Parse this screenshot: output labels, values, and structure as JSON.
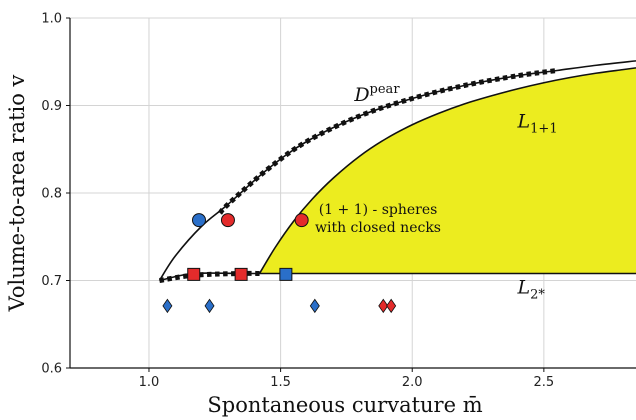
{
  "chart_data": {
    "type": "line",
    "xlabel": "Spontaneous curvature m̄",
    "ylabel": "Volume-to-area ratio v",
    "xlim": [
      0.7,
      2.85
    ],
    "ylim": [
      0.6,
      1.0
    ],
    "x_ticks": [
      "1.0",
      "1.5",
      "2.0",
      "2.5"
    ],
    "x_tick_values": [
      1.0,
      1.5,
      2.0,
      2.5
    ],
    "y_ticks": [
      "0.6",
      "0.7",
      "0.8",
      "0.9",
      "1.0"
    ],
    "y_tick_values": [
      0.6,
      0.7,
      0.8,
      0.9,
      1.0
    ],
    "grid": true,
    "fill_color": "#ecec1f",
    "region": {
      "label_line1": "(1 + 1) - spheres",
      "label_line2": "with closed necks",
      "label_pos": [
        1.87,
        0.776
      ],
      "bottom_v": 0.708,
      "boundary_x": [
        1.42,
        1.48,
        1.55,
        1.62,
        1.7,
        1.8,
        1.9,
        2.0,
        2.1,
        2.2,
        2.3,
        2.4,
        2.5,
        2.6,
        2.7,
        2.8,
        2.85
      ],
      "boundary_y": [
        0.708,
        0.738,
        0.768,
        0.793,
        0.817,
        0.842,
        0.862,
        0.878,
        0.891,
        0.902,
        0.911,
        0.919,
        0.926,
        0.932,
        0.937,
        0.941,
        0.943
      ]
    },
    "series": [
      {
        "name": "L_{1+1}",
        "style": "solid",
        "x": [
          1.42,
          1.48,
          1.55,
          1.62,
          1.7,
          1.8,
          1.9,
          2.0,
          2.1,
          2.2,
          2.3,
          2.4,
          2.5,
          2.6,
          2.7,
          2.8,
          2.85
        ],
        "y": [
          0.708,
          0.738,
          0.768,
          0.793,
          0.817,
          0.842,
          0.862,
          0.878,
          0.891,
          0.902,
          0.911,
          0.919,
          0.926,
          0.932,
          0.937,
          0.941,
          0.943
        ]
      },
      {
        "name": "L_{2*}",
        "style": "solid",
        "x": [
          1.04,
          1.17,
          1.35,
          1.4,
          1.6,
          2.0,
          2.5,
          2.85
        ],
        "y": [
          0.7,
          0.708,
          0.708,
          0.708,
          0.708,
          0.708,
          0.708,
          0.708
        ]
      },
      {
        "name": "L_{2*} (dotted)",
        "style": "dotted",
        "x": [
          1.04,
          1.17,
          1.35,
          1.42
        ],
        "y": [
          0.7,
          0.706,
          0.708,
          0.708
        ]
      },
      {
        "name": "D^pear",
        "style": "solid",
        "x": [
          1.04,
          1.1,
          1.2,
          1.3,
          1.45,
          1.6,
          1.8,
          2.0,
          2.2,
          2.4,
          2.55,
          2.7,
          2.85
        ],
        "y": [
          0.7,
          0.728,
          0.762,
          0.787,
          0.827,
          0.859,
          0.888,
          0.908,
          0.923,
          0.934,
          0.94,
          0.946,
          0.951
        ]
      },
      {
        "name": "D^pear (dotted)",
        "style": "dotted",
        "x": [
          1.27,
          1.3,
          1.45,
          1.6,
          1.8,
          2.0,
          2.2,
          2.4,
          2.55
        ],
        "y": [
          0.777,
          0.787,
          0.827,
          0.859,
          0.888,
          0.908,
          0.923,
          0.934,
          0.94
        ]
      }
    ],
    "markers": [
      {
        "shape": "circle",
        "color": "#e32b2b",
        "x": 1.3,
        "y": 0.769
      },
      {
        "shape": "circle",
        "color": "#e32b2b",
        "x": 1.58,
        "y": 0.769
      },
      {
        "shape": "circle",
        "color": "#2a6fc9",
        "x": 1.19,
        "y": 0.769
      },
      {
        "shape": "square",
        "color": "#e32b2b",
        "x": 1.17,
        "y": 0.707
      },
      {
        "shape": "square",
        "color": "#e32b2b",
        "x": 1.35,
        "y": 0.707
      },
      {
        "shape": "square",
        "color": "#2a6fc9",
        "x": 1.52,
        "y": 0.707
      },
      {
        "shape": "diamond",
        "color": "#2a6fc9",
        "x": 1.07,
        "y": 0.671
      },
      {
        "shape": "diamond",
        "color": "#2a6fc9",
        "x": 1.23,
        "y": 0.671
      },
      {
        "shape": "diamond",
        "color": "#2a6fc9",
        "x": 1.63,
        "y": 0.671
      },
      {
        "shape": "diamond",
        "color": "#e32b2b",
        "x": 1.89,
        "y": 0.671
      },
      {
        "shape": "diamond",
        "color": "#e32b2b",
        "x": 1.92,
        "y": 0.671
      }
    ],
    "curve_labels": [
      {
        "main": "D",
        "sup": "pear",
        "sub": "",
        "pos": [
          1.78,
          0.905
        ]
      },
      {
        "main": "L",
        "sup": "",
        "sub": "1+1",
        "pos": [
          2.4,
          0.875
        ]
      },
      {
        "main": "L",
        "sup": "",
        "sub": "2*",
        "pos": [
          2.4,
          0.685
        ]
      }
    ]
  }
}
